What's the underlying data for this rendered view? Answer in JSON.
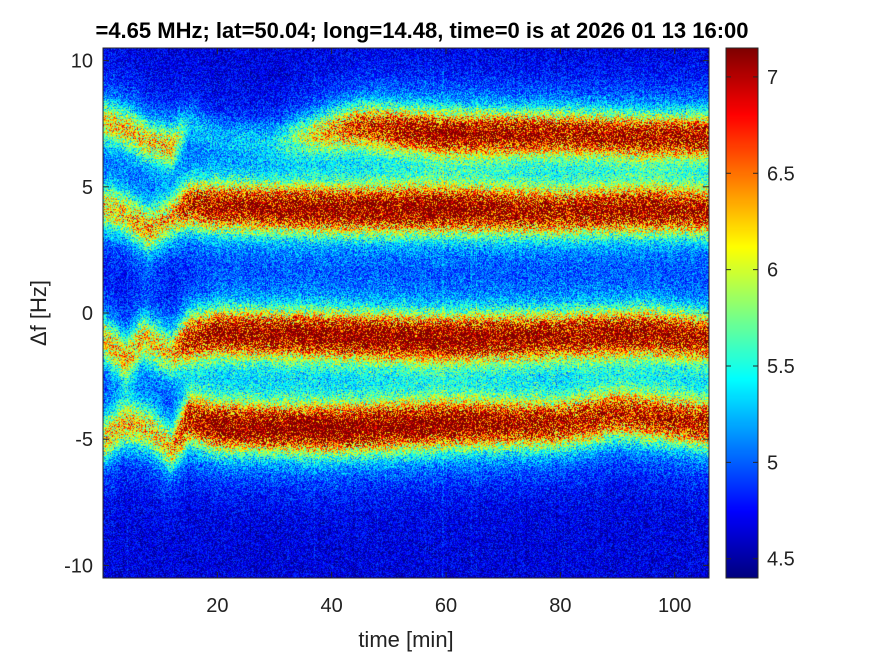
{
  "chart_data": {
    "type": "heatmap",
    "title": "=4.65 MHz;  lat=50.04; long=14.48, time=0 is at 2026 01 13 16:00",
    "xlabel": "time [min]",
    "ylabel": "Δf [Hz]",
    "xlim": [
      0,
      106
    ],
    "ylim": [
      -10.5,
      10.5
    ],
    "x_ticks": [
      20,
      40,
      60,
      80,
      100
    ],
    "x_tick_labels": [
      "20",
      "40",
      "60",
      "80",
      "100"
    ],
    "y_ticks": [
      10,
      5,
      0,
      -5,
      -10
    ],
    "y_tick_labels": [
      "10",
      "5",
      "0",
      "-5",
      "-10"
    ],
    "colorbar": {
      "range": [
        4.4,
        7.15
      ],
      "colormap": "jet",
      "ticks": [
        7,
        6.5,
        6,
        5.5,
        5,
        4.5
      ],
      "tick_labels": [
        "7",
        "6.5",
        "6",
        "5.5",
        "5",
        "4.5"
      ]
    },
    "grid": false,
    "traces": [
      {
        "name": "band-plus-7",
        "points": [
          [
            0,
            7.6
          ],
          [
            5,
            7.2
          ],
          [
            8,
            6.8
          ],
          [
            12,
            6.6
          ],
          [
            15,
            7.5
          ],
          [
            20,
            7.0
          ],
          [
            30,
            6.8
          ],
          [
            45,
            7.4
          ],
          [
            60,
            7.1
          ],
          [
            80,
            7.1
          ],
          [
            95,
            7.0
          ],
          [
            106,
            7.0
          ]
        ],
        "strength": [
          0.5,
          0.5,
          0.5,
          0.5,
          0.2,
          0.15,
          0.2,
          0.7,
          0.85,
          0.8,
          0.8,
          0.8
        ],
        "width": 0.55
      },
      {
        "name": "band-plus-4",
        "points": [
          [
            0,
            4.2
          ],
          [
            4,
            3.9
          ],
          [
            8,
            3.3
          ],
          [
            12,
            3.8
          ],
          [
            15,
            4.3
          ],
          [
            20,
            4.2
          ],
          [
            40,
            4.1
          ],
          [
            60,
            4.1
          ],
          [
            80,
            4.0
          ],
          [
            95,
            4.1
          ],
          [
            106,
            4.0
          ]
        ],
        "strength": [
          0.5,
          0.5,
          0.55,
          0.5,
          0.75,
          0.85,
          0.9,
          0.9,
          0.8,
          0.85,
          0.8
        ],
        "width": 0.6
      },
      {
        "name": "band-minus-1",
        "points": [
          [
            0,
            -1.0
          ],
          [
            4,
            -1.8
          ],
          [
            7,
            -1.0
          ],
          [
            12,
            -1.6
          ],
          [
            15,
            -1.0
          ],
          [
            20,
            -0.8
          ],
          [
            40,
            -0.9
          ],
          [
            60,
            -1.0
          ],
          [
            80,
            -0.9
          ],
          [
            95,
            -0.8
          ],
          [
            106,
            -1.0
          ]
        ],
        "strength": [
          0.5,
          0.5,
          0.5,
          0.5,
          0.75,
          0.85,
          0.9,
          0.9,
          0.85,
          0.85,
          0.8
        ],
        "width": 0.6
      },
      {
        "name": "band-minus-4",
        "points": [
          [
            0,
            -5.0
          ],
          [
            4,
            -4.4
          ],
          [
            8,
            -4.6
          ],
          [
            12,
            -5.4
          ],
          [
            15,
            -4.2
          ],
          [
            20,
            -4.5
          ],
          [
            40,
            -4.6
          ],
          [
            60,
            -4.4
          ],
          [
            80,
            -4.4
          ],
          [
            90,
            -4.0
          ],
          [
            106,
            -4.4
          ]
        ],
        "strength": [
          0.5,
          0.5,
          0.5,
          0.5,
          0.8,
          0.9,
          0.95,
          0.9,
          0.8,
          0.75,
          0.8
        ],
        "width": 0.6
      }
    ]
  }
}
